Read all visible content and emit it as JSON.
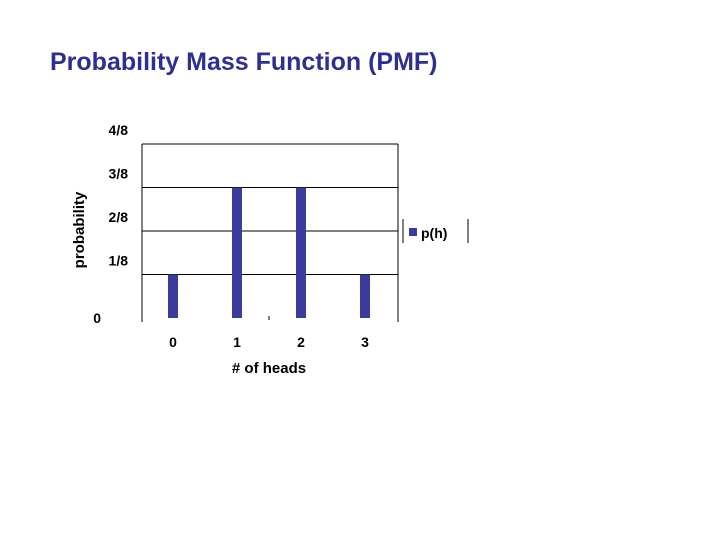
{
  "slide": {
    "title": "Probability Mass Function (PMF)"
  },
  "chart_data": {
    "type": "bar",
    "categories": [
      "0",
      "1",
      "2",
      "3"
    ],
    "series": [
      {
        "name": "p(h)",
        "values": [
          0.125,
          0.375,
          0.375,
          0.125
        ],
        "color": "#3b3b9e"
      }
    ],
    "xlabel": "# of heads",
    "ylabel": "probability",
    "ylim": [
      0,
      0.5
    ],
    "yticks": [
      {
        "value": 0,
        "label": "0"
      },
      {
        "value": 0.125,
        "label": "1/8"
      },
      {
        "value": 0.25,
        "label": "2/8"
      },
      {
        "value": 0.375,
        "label": "3/8"
      },
      {
        "value": 0.5,
        "label": "4/8"
      }
    ],
    "grid": true,
    "legend": "right"
  }
}
